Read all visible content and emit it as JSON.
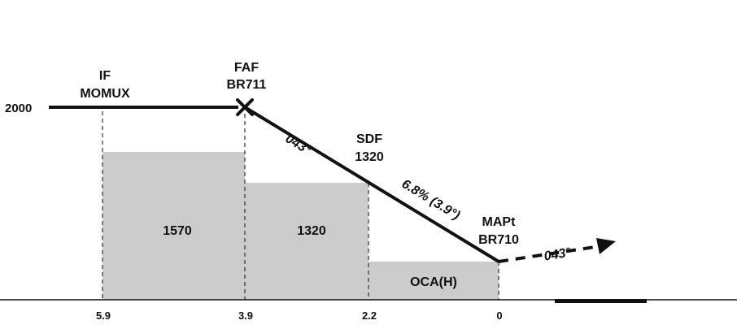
{
  "profile": {
    "initial_altitude": "2000",
    "fixes": [
      {
        "role": "IF",
        "name": "MOMUX"
      },
      {
        "role": "FAF",
        "name": "BR711"
      },
      {
        "role": "SDF",
        "name": "1320"
      },
      {
        "role": "MAPt",
        "name": "BR710"
      }
    ],
    "approach_track": "043°",
    "descent_gradient": "6.8% (3.9°)",
    "missed_approach_track": "043°"
  },
  "minimum_altitudes": [
    {
      "segment": "IF to FAF",
      "value": "1570"
    },
    {
      "segment": "FAF to SDF",
      "value": "1320"
    },
    {
      "segment": "SDF to MAPt",
      "value": "OCA(H)"
    }
  ],
  "distances": [
    "5.9",
    "3.9",
    "2.2",
    "0"
  ]
}
